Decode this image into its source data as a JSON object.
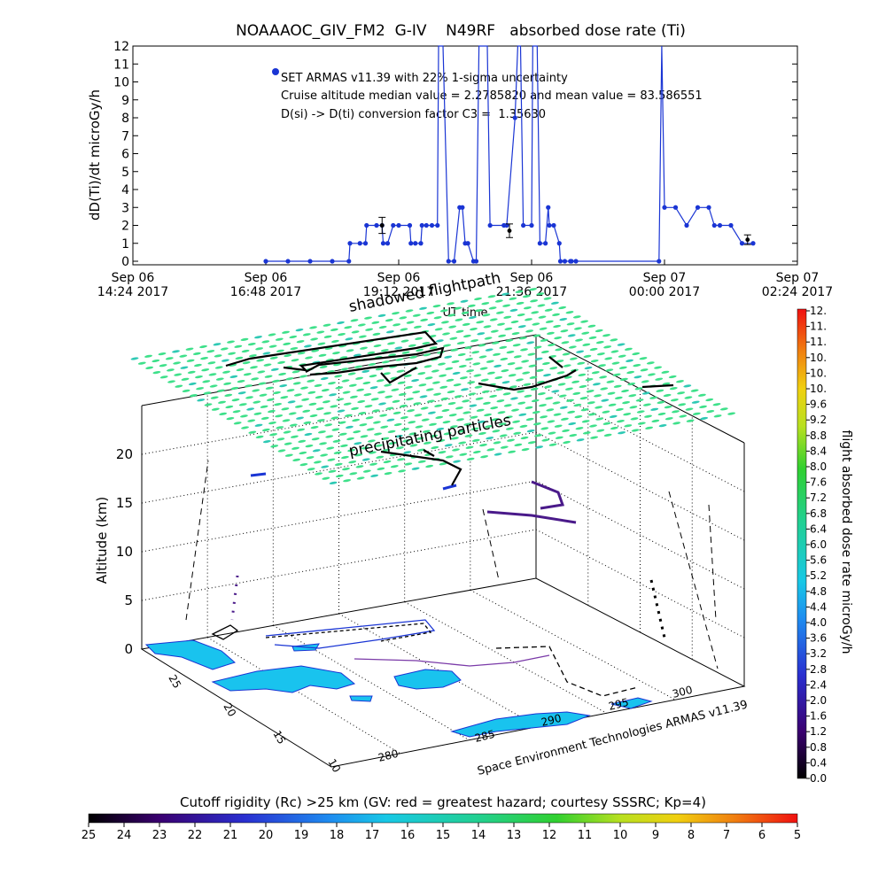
{
  "chart_data": [
    {
      "type": "line",
      "title": "NOAAAOC_GIV_FM2  G-IV    N49RF   absorbed dose rate (Ti)",
      "ylabel": "dD(Ti)/dt microGy/h",
      "xlabel": "UT time",
      "ylim": [
        0,
        12
      ],
      "y_ticks": [
        "0",
        "1",
        "2",
        "3",
        "4",
        "5",
        "6",
        "7",
        "8",
        "9",
        "10",
        "11",
        "12"
      ],
      "x_ticks": [
        {
          "line1": "Sep 06",
          "line2": "14:24 2017"
        },
        {
          "line1": "Sep 06",
          "line2": "16:48 2017"
        },
        {
          "line1": "Sep 06",
          "line2": "19:12 2017"
        },
        {
          "line1": "Sep 06",
          "line2": "21:36 2017"
        },
        {
          "line1": "Sep 07",
          "line2": "00:00 2017"
        },
        {
          "line1": "Sep 07",
          "line2": "02:24 2017"
        }
      ],
      "annotations": [
        "SET ARMAS v11.39 with 22% 1-sigma uncertainty",
        "Cruise altitude median value = 2.2785820 and mean value = 83.586551",
        "D(si) -> D(ti) conversion factor C3 =  1.35630"
      ],
      "series": [
        {
          "color": "#1a35d4",
          "x_hours": [
            16.8,
            17.2,
            17.6,
            18.0,
            18.3,
            18.32,
            18.5,
            18.6,
            18.62,
            18.8,
            18.9,
            18.92,
            19.0,
            19.1,
            19.2,
            19.4,
            19.42,
            19.5,
            19.6,
            19.62,
            19.7,
            19.8,
            19.9,
            19.92,
            20.0,
            20.1,
            20.2,
            20.3,
            20.35,
            20.4,
            20.45,
            20.55,
            20.6,
            20.65,
            20.8,
            20.85,
            21.1,
            21.15,
            21.3,
            21.35,
            21.4,
            21.45,
            21.6,
            21.62,
            21.7,
            21.75,
            21.85,
            21.9,
            21.92,
            22.0,
            22.1,
            22.12,
            22.2,
            22.3,
            22.32,
            22.4,
            23.9,
            23.95,
            24.0,
            24.2,
            24.4,
            24.6,
            24.8,
            24.9,
            25.0,
            25.2,
            25.4,
            25.6
          ],
          "values": [
            0,
            0,
            0,
            0,
            0,
            1,
            1,
            1,
            2,
            2,
            2,
            1,
            1,
            2,
            2,
            2,
            1,
            1,
            1,
            2,
            2,
            2,
            2,
            20,
            20,
            0,
            0,
            3,
            3,
            1,
            1,
            0,
            0,
            20,
            20,
            2,
            2,
            2,
            8,
            20,
            20,
            2,
            2,
            20,
            20,
            1,
            1,
            3,
            2,
            2,
            1,
            0,
            0,
            0,
            0,
            0,
            0,
            20,
            3,
            3,
            2,
            3,
            3,
            2,
            2,
            2,
            1,
            1
          ],
          "error_bars": [
            {
              "x_hours": 18.9,
              "value": 2.0,
              "err": 0.45
            },
            {
              "x_hours": 21.2,
              "value": 1.7,
              "err": 0.38
            },
            {
              "x_hours": 25.5,
              "value": 1.2,
              "err": 0.27
            }
          ]
        }
      ]
    },
    {
      "type": "scatter",
      "subtype": "3d-flightpath",
      "zlabel": "Altitude (km)",
      "z_ticks": [
        "0",
        "5",
        "10",
        "15",
        "20"
      ],
      "lat_ticks": [
        "10",
        "15",
        "20",
        "25"
      ],
      "lon_ticks": [
        "280",
        "285",
        "290",
        "295",
        "300"
      ],
      "plane_labels": [
        "shadowed flightpath",
        "precipitating particles"
      ],
      "footer_label": "Space Environment Technologies ARMAS v11.39",
      "colorbar": {
        "title": "flight absorbed dose rate microGy/h",
        "ticks": [
          "0.0",
          "0.4",
          "0.8",
          "1.2",
          "1.6",
          "2.0",
          "2.4",
          "2.8",
          "3.2",
          "3.6",
          "4.0",
          "4.4",
          "4.8",
          "5.2",
          "5.6",
          "6.0",
          "6.4",
          "6.8",
          "7.2",
          "7.6",
          "8.0",
          "8.4",
          "8.8",
          "9.2",
          "9.6",
          "10.",
          "10.",
          "10.",
          "11.",
          "11.",
          "12."
        ]
      },
      "rigidity_bar": {
        "title": "Cutoff rigidity (Rc) >25 km (GV: red = greatest hazard; courtesy SSSRC; Kp=4)",
        "ticks": [
          "25",
          "24",
          "23",
          "22",
          "21",
          "20",
          "19",
          "18",
          "17",
          "16",
          "15",
          "14",
          "13",
          "12",
          "11",
          "10",
          "9",
          "8",
          "7",
          "6",
          "5"
        ]
      }
    }
  ],
  "colors": {
    "data_blue": "#1a35d4",
    "grid_green": "#3ee08a",
    "land_cyan": "#19c3ee",
    "track_black": "#000000"
  }
}
